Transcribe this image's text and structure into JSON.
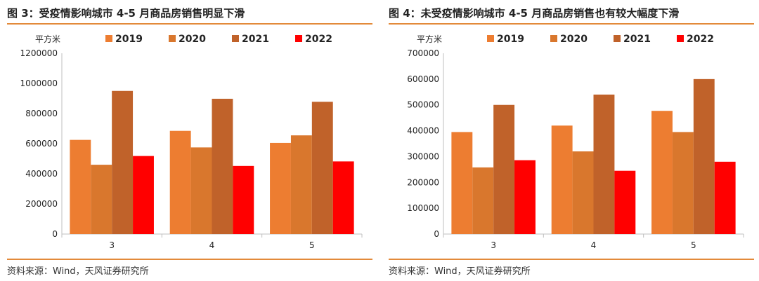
{
  "chart_data": [
    {
      "type": "bar",
      "title": "图 3：受疫情影响城市 4-5 月商品房销售明显下滑",
      "ylabel": "平方米",
      "source": "资料来源：Wind，天风证券研究所",
      "categories": [
        "3",
        "4",
        "5"
      ],
      "ylim": [
        0,
        1200000
      ],
      "yticks": [
        "0",
        "200000",
        "400000",
        "600000",
        "800000",
        "1000000",
        "1200000"
      ],
      "legend_position": "top",
      "series": [
        {
          "name": "2019",
          "color": "#ed7d31",
          "values": [
            625000,
            685000,
            605000
          ]
        },
        {
          "name": "2020",
          "color": "#d9772d",
          "values": [
            460000,
            575000,
            655000
          ]
        },
        {
          "name": "2021",
          "color": "#c0622a",
          "values": [
            950000,
            898000,
            878000
          ]
        },
        {
          "name": "2022",
          "color": "#ff0000",
          "values": [
            518000,
            452000,
            482000
          ]
        }
      ]
    },
    {
      "type": "bar",
      "title": "图 4：未受疫情影响城市 4-5 月商品房销售也有较大幅度下滑",
      "ylabel": "平方米",
      "source": "资料来源：Wind，天风证券研究所",
      "categories": [
        "3",
        "4",
        "5"
      ],
      "ylim": [
        0,
        700000
      ],
      "yticks": [
        "0",
        "100000",
        "200000",
        "300000",
        "400000",
        "500000",
        "600000",
        "700000"
      ],
      "legend_position": "top",
      "series": [
        {
          "name": "2019",
          "color": "#ed7d31",
          "values": [
            395000,
            420000,
            477000
          ]
        },
        {
          "name": "2020",
          "color": "#d9772d",
          "values": [
            258000,
            320000,
            395000
          ]
        },
        {
          "name": "2021",
          "color": "#c0622a",
          "values": [
            500000,
            540000,
            600000
          ]
        },
        {
          "name": "2022",
          "color": "#ff0000",
          "values": [
            286000,
            245000,
            280000
          ]
        }
      ]
    }
  ]
}
